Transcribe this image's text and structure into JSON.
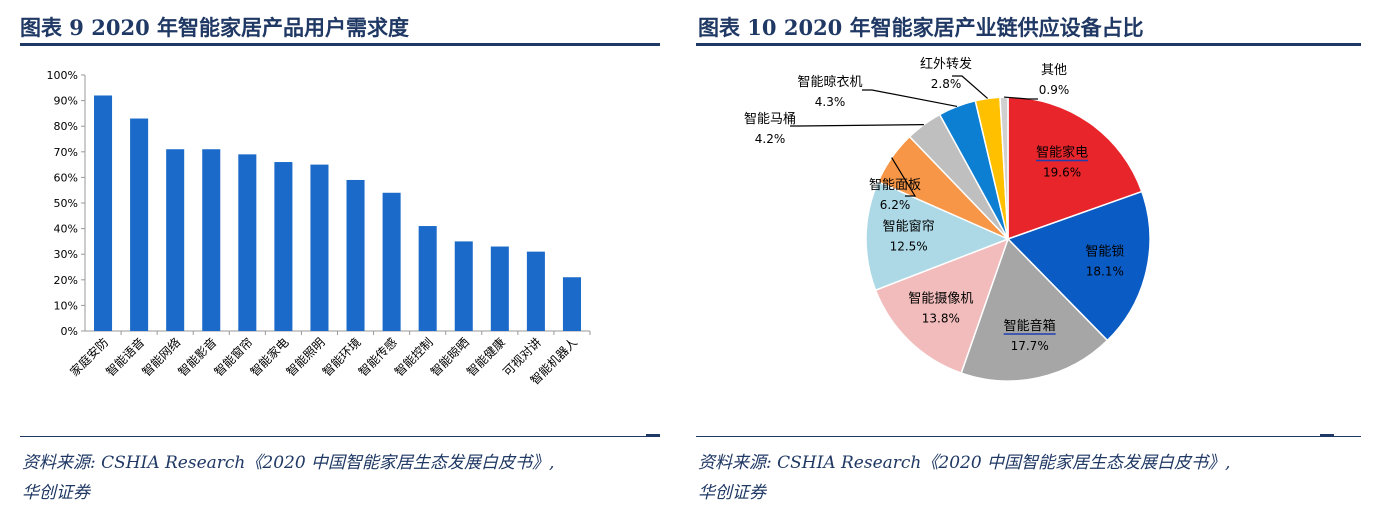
{
  "left": {
    "title": "图表 9   2020 年智能家居产品用户需求度",
    "source_line1": "资料来源: CSHIA Research《2020 中国智能家居生态发展白皮书》,",
    "source_line2": "华创证券"
  },
  "right": {
    "title": "图表 10   2020 年智能家居产业链供应设备占比",
    "source_line1": "资料来源: CSHIA Research《2020 中国智能家居生态发展白皮书》,",
    "source_line2": "华创证券"
  },
  "colors": {
    "title": "#1f3864",
    "bar": "#1b6ac9",
    "axis": "#999999"
  },
  "chart_data": [
    {
      "type": "bar",
      "title": "2020 年智能家居产品用户需求度",
      "categories": [
        "家庭安防",
        "智能语音",
        "智能网络",
        "智能影音",
        "智能窗帘",
        "智能家电",
        "智能照明",
        "智能环境",
        "智能传感",
        "智能控制",
        "智能晾晒",
        "智能健康",
        "可视对讲",
        "智能机器人"
      ],
      "values": [
        92,
        83,
        71,
        71,
        69,
        66,
        65,
        59,
        54,
        41,
        35,
        33,
        31,
        21
      ],
      "ylim": [
        0,
        100
      ],
      "yticks": [
        "0%",
        "10%",
        "20%",
        "30%",
        "40%",
        "50%",
        "60%",
        "70%",
        "80%",
        "90%",
        "100%"
      ],
      "unit": "%",
      "grid": false,
      "legend": "none"
    },
    {
      "type": "pie",
      "title": "2020 年智能家居产业链供应设备占比",
      "slices": [
        {
          "label": "智能家电",
          "value": 19.6,
          "text": "19.6%",
          "color": "#e8252b",
          "underline": true
        },
        {
          "label": "智能锁",
          "value": 18.1,
          "text": "18.1%",
          "color": "#0a5bc4"
        },
        {
          "label": "智能音箱",
          "value": 17.7,
          "text": "17.7%",
          "color": "#a6a6a6",
          "underline": true
        },
        {
          "label": "智能摄像机",
          "value": 13.8,
          "text": "13.8%",
          "color": "#f2bcbc"
        },
        {
          "label": "智能窗帘",
          "value": 12.5,
          "text": "12.5%",
          "color": "#add8e6"
        },
        {
          "label": "智能面板",
          "value": 6.2,
          "text": "6.2%",
          "color": "#f79646"
        },
        {
          "label": "智能马桶",
          "value": 4.2,
          "text": "4.2%",
          "color": "#bfbfbf"
        },
        {
          "label": "智能晾衣机",
          "value": 4.3,
          "text": "4.3%",
          "color": "#0d7fd3"
        },
        {
          "label": "红外转发",
          "value": 2.8,
          "text": "2.8%",
          "color": "#ffc000"
        },
        {
          "label": "其他",
          "value": 0.9,
          "text": "0.9%",
          "color": "#d0d0d0"
        }
      ],
      "start_angle_deg": 0,
      "direction": "clockwise",
      "legend": "none"
    }
  ]
}
